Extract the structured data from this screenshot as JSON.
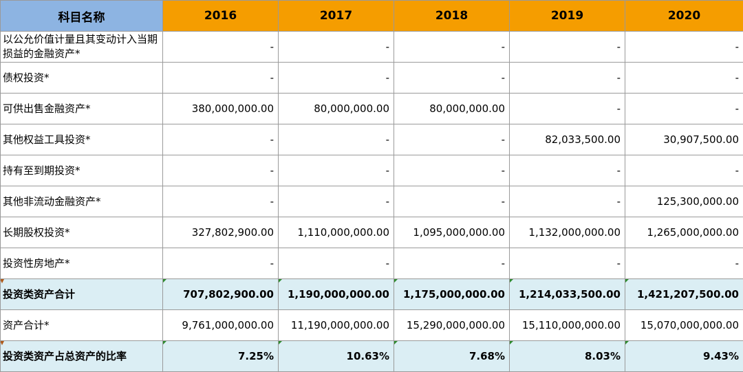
{
  "header": {
    "label": "科目名称",
    "years": [
      "2016",
      "2017",
      "2018",
      "2019",
      "2020"
    ]
  },
  "rows": [
    {
      "label": "以公允价值计量且其变动计入当期损益的金融资产*",
      "values": [
        "-",
        "-",
        "-",
        "-",
        "-"
      ]
    },
    {
      "label": "债权投资*",
      "values": [
        "-",
        "-",
        "-",
        "-",
        "-"
      ]
    },
    {
      "label": "可供出售金融资产*",
      "values": [
        "380,000,000.00",
        "80,000,000.00",
        "80,000,000.00",
        "-",
        "-"
      ]
    },
    {
      "label": "其他权益工具投资*",
      "values": [
        "-",
        "-",
        "-",
        "82,033,500.00",
        "30,907,500.00"
      ]
    },
    {
      "label": "持有至到期投资*",
      "values": [
        "-",
        "-",
        "-",
        "-",
        "-"
      ]
    },
    {
      "label": "其他非流动金融资产*",
      "values": [
        "-",
        "-",
        "-",
        "-",
        "125,300,000.00"
      ]
    },
    {
      "label": "长期股权投资*",
      "values": [
        "327,802,900.00",
        "1,110,000,000.00",
        "1,095,000,000.00",
        "1,132,000,000.00",
        "1,265,000,000.00"
      ]
    },
    {
      "label": "投资性房地产*",
      "values": [
        "-",
        "-",
        "-",
        "-",
        "-"
      ]
    },
    {
      "label": "投资类资产合计",
      "values": [
        "707,802,900.00",
        "1,190,000,000.00",
        "1,175,000,000.00",
        "1,214,033,500.00",
        "1,421,207,500.00"
      ]
    },
    {
      "label": "资产合计*",
      "values": [
        "9,761,000,000.00",
        "11,190,000,000.00",
        "15,290,000,000.00",
        "15,110,000,000.00",
        "15,070,000,000.00"
      ]
    },
    {
      "label": "投资类资产占总资产的比率",
      "values": [
        "7.25%",
        "10.63%",
        "7.68%",
        "8.03%",
        "9.43%"
      ]
    }
  ]
}
